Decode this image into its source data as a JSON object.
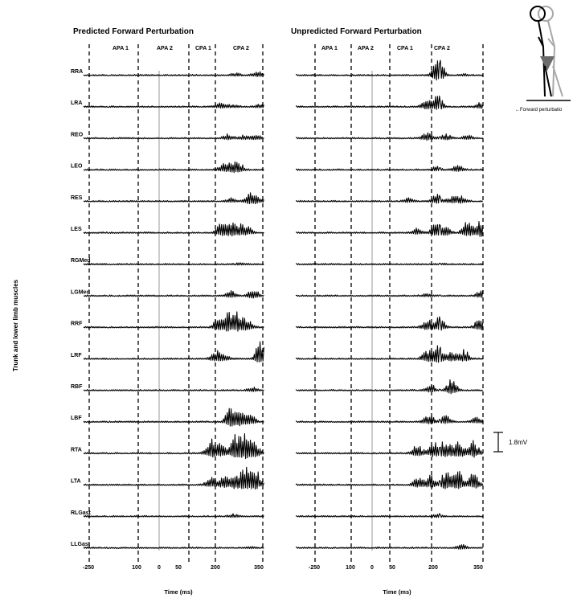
{
  "figure": {
    "y_axis_label": "Trunk and lower limb muscles",
    "scale_bar_label": "1.8mV",
    "inset_label": "Forward perturbatio",
    "colors": {
      "trace": "#000000",
      "dashed": "#000000",
      "onset_line": "#9a9a9a"
    }
  },
  "chart_data": [
    {
      "type": "line",
      "title": "Predicted Forward Perturbation",
      "xlabel": "Time (ms)",
      "x_ticks": [
        "-250",
        "100",
        "0",
        "50",
        "200",
        "350"
      ],
      "phase_labels": [
        "APA 1",
        "APA 2",
        "CPA 1",
        "CPA 2"
      ],
      "muscles": [
        "RRA",
        "LRA",
        "REO",
        "LEO",
        "RES",
        "LES",
        "RGMed",
        "LGMed",
        "RRF",
        "LRF",
        "RBF",
        "LBF",
        "RTA",
        "LTA",
        "RLGast",
        "LLGast"
      ],
      "activity": {
        "RRA": [
          {
            "t": 240,
            "a": 0.15
          },
          {
            "t": 330,
            "a": 0.3
          }
        ],
        "LRA": [
          {
            "t": 180,
            "a": 0.25
          },
          {
            "t": 230,
            "a": 0.15
          },
          {
            "t": 340,
            "a": 0.2
          }
        ],
        "REO": [
          {
            "t": 210,
            "a": 0.25
          },
          {
            "t": 270,
            "a": 0.2
          },
          {
            "t": 320,
            "a": 0.25
          }
        ],
        "LEO": [
          {
            "t": 190,
            "a": 0.35
          },
          {
            "t": 230,
            "a": 0.55
          },
          {
            "t": 260,
            "a": 0.3
          }
        ],
        "RES": [
          {
            "t": 220,
            "a": 0.2
          },
          {
            "t": 300,
            "a": 0.8
          },
          {
            "t": 330,
            "a": 0.2
          }
        ],
        "LES": [
          {
            "t": 180,
            "a": 0.6
          },
          {
            "t": 220,
            "a": 0.8
          },
          {
            "t": 260,
            "a": 0.5
          },
          {
            "t": 290,
            "a": 0.3
          }
        ],
        "RGMed": [
          {
            "t": 260,
            "a": 0.1
          }
        ],
        "LGMed": [
          {
            "t": 220,
            "a": 0.3
          },
          {
            "t": 310,
            "a": 0.5
          }
        ],
        "RRF": [
          {
            "t": 170,
            "a": 0.6
          },
          {
            "t": 210,
            "a": 0.9
          },
          {
            "t": 250,
            "a": 1.0
          },
          {
            "t": 290,
            "a": 0.6
          }
        ],
        "LRF": [
          {
            "t": 160,
            "a": 0.6
          },
          {
            "t": 200,
            "a": 0.3
          },
          {
            "t": 340,
            "a": 1.1
          }
        ],
        "RBF": [
          {
            "t": 310,
            "a": 0.25
          }
        ],
        "LBF": [
          {
            "t": 220,
            "a": 1.1
          },
          {
            "t": 260,
            "a": 0.8
          },
          {
            "t": 300,
            "a": 0.5
          }
        ],
        "RTA": [
          {
            "t": 140,
            "a": 0.9
          },
          {
            "t": 180,
            "a": 0.7
          },
          {
            "t": 240,
            "a": 1.2
          },
          {
            "t": 280,
            "a": 1.3
          },
          {
            "t": 320,
            "a": 0.8
          }
        ],
        "LTA": [
          {
            "t": 140,
            "a": 0.5
          },
          {
            "t": 190,
            "a": 0.6
          },
          {
            "t": 240,
            "a": 0.9
          },
          {
            "t": 280,
            "a": 1.2
          },
          {
            "t": 320,
            "a": 1.0
          }
        ],
        "RLGast": [
          {
            "t": 230,
            "a": 0.15
          }
        ],
        "LLGast": [
          {
            "t": 300,
            "a": 0.05
          }
        ]
      }
    },
    {
      "type": "line",
      "title": "Unpredicted Forward Perturbation",
      "xlabel": "Time (ms)",
      "x_ticks": [
        "-250",
        "100",
        "0",
        "50",
        "200",
        "350"
      ],
      "phase_labels": [
        "APA 1",
        "APA 2",
        "CPA 1",
        "CPA 2"
      ],
      "muscles": [
        "RRA",
        "LRA",
        "REO",
        "LEO",
        "RES",
        "LES",
        "RGMed",
        "LGMed",
        "RRF",
        "LRF",
        "RBF",
        "LBF",
        "RTA",
        "LTA",
        "RLGast",
        "LLGast"
      ],
      "activity": {
        "RRA": [
          {
            "t": 200,
            "a": 0.6
          },
          {
            "t": 210,
            "a": 0.9
          },
          {
            "t": 290,
            "a": 0.1
          }
        ],
        "LRA": [
          {
            "t": 170,
            "a": 0.5
          },
          {
            "t": 205,
            "a": 0.7
          },
          {
            "t": 340,
            "a": 0.3
          }
        ],
        "REO": [
          {
            "t": 170,
            "a": 0.4
          },
          {
            "t": 230,
            "a": 0.3
          },
          {
            "t": 300,
            "a": 0.2
          }
        ],
        "LEO": [
          {
            "t": 200,
            "a": 0.2
          },
          {
            "t": 270,
            "a": 0.35
          }
        ],
        "RES": [
          {
            "t": 110,
            "a": 0.2
          },
          {
            "t": 200,
            "a": 0.45
          },
          {
            "t": 250,
            "a": 0.3
          },
          {
            "t": 280,
            "a": 0.35
          }
        ],
        "LES": [
          {
            "t": 140,
            "a": 0.3
          },
          {
            "t": 200,
            "a": 0.7
          },
          {
            "t": 230,
            "a": 0.5
          },
          {
            "t": 300,
            "a": 0.8
          },
          {
            "t": 340,
            "a": 0.9
          }
        ],
        "RGMed": [
          {
            "t": 220,
            "a": 0.05
          }
        ],
        "LGMed": [
          {
            "t": 170,
            "a": 0.15
          },
          {
            "t": 345,
            "a": 0.35
          }
        ],
        "RRF": [
          {
            "t": 170,
            "a": 0.6
          },
          {
            "t": 210,
            "a": 0.7
          },
          {
            "t": 340,
            "a": 0.6
          }
        ],
        "LRF": [
          {
            "t": 170,
            "a": 0.6
          },
          {
            "t": 205,
            "a": 1.0
          },
          {
            "t": 250,
            "a": 0.5
          },
          {
            "t": 290,
            "a": 0.6
          }
        ],
        "RBF": [
          {
            "t": 180,
            "a": 0.4
          },
          {
            "t": 250,
            "a": 0.8
          }
        ],
        "LBF": [
          {
            "t": 175,
            "a": 0.5
          },
          {
            "t": 230,
            "a": 0.4
          },
          {
            "t": 330,
            "a": 0.3
          }
        ],
        "RTA": [
          {
            "t": 140,
            "a": 0.6
          },
          {
            "t": 190,
            "a": 0.8
          },
          {
            "t": 230,
            "a": 1.0
          },
          {
            "t": 270,
            "a": 1.2
          },
          {
            "t": 320,
            "a": 1.0
          }
        ],
        "LTA": [
          {
            "t": 140,
            "a": 0.5
          },
          {
            "t": 180,
            "a": 0.6
          },
          {
            "t": 230,
            "a": 0.9
          },
          {
            "t": 270,
            "a": 1.0
          },
          {
            "t": 320,
            "a": 0.9
          }
        ],
        "RLGast": [
          {
            "t": 205,
            "a": 0.2
          }
        ],
        "LLGast": [
          {
            "t": 280,
            "a": 0.25
          }
        ]
      }
    }
  ]
}
